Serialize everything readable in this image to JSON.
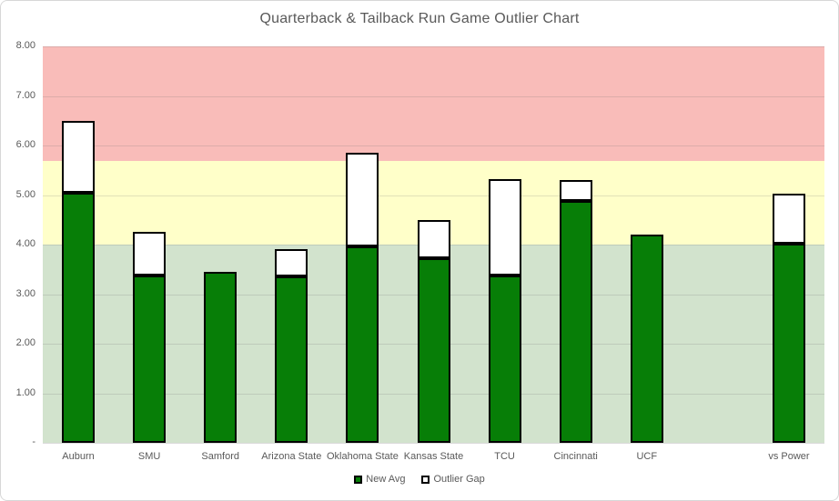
{
  "window": {
    "background_color": "#ffffff",
    "border_color": "#d7d7d7",
    "text_color": "#595959"
  },
  "chart_data": {
    "type": "bar",
    "stacked": true,
    "title": "Quarterback & Tailback Run Game Outlier Chart",
    "categories": [
      "Auburn",
      "SMU",
      "Samford",
      "Arizona State",
      "Oklahoma State",
      "Kansas State",
      "TCU",
      "Cincinnati",
      "UCF",
      "",
      "vs Power"
    ],
    "series": [
      {
        "name": "New Avg",
        "color": "#077e07",
        "values": [
          5.05,
          3.38,
          3.45,
          3.36,
          3.96,
          3.72,
          3.37,
          4.88,
          4.2,
          null,
          4.01
        ]
      },
      {
        "name": "Outlier Gap",
        "color": "#ffffff",
        "values": [
          1.45,
          0.87,
          0.0,
          0.55,
          1.9,
          0.78,
          1.96,
          0.43,
          0.0,
          null,
          1.01
        ]
      }
    ],
    "totals": [
      6.5,
      4.25,
      3.45,
      3.91,
      5.86,
      4.5,
      5.33,
      5.31,
      4.2,
      null,
      5.02
    ],
    "xlabel": "",
    "ylabel": "",
    "ylim": [
      0,
      8
    ],
    "y_tick_labels": [
      "-",
      "1.00",
      "2.00",
      "3.00",
      "4.00",
      "5.00",
      "6.00",
      "7.00",
      "8.00"
    ],
    "grid": true,
    "legend_position": "bottom",
    "bar_outline_color": "#000000",
    "background_bands": [
      {
        "name": "green-zone",
        "from": 0.0,
        "to": 4.0,
        "color": "#d2e3cd"
      },
      {
        "name": "yellow-zone",
        "from": 4.0,
        "to": 5.68,
        "color": "#ffffc9"
      },
      {
        "name": "red-zone",
        "from": 5.68,
        "to": 8.0,
        "color": "#f9bcb9"
      }
    ]
  }
}
